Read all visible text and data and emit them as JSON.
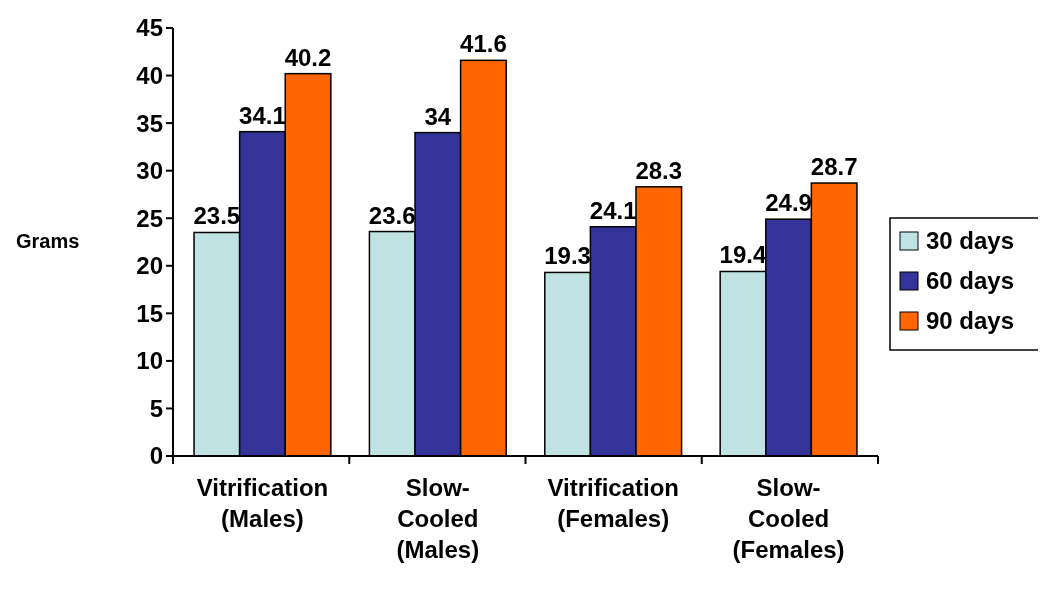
{
  "chart_data": {
    "type": "bar",
    "ylabel": "Grams",
    "categories": [
      "Vitrification (Males)",
      "Slow-Cooled (Males)",
      "Vitrification (Females)",
      "Slow-Cooled (Females)"
    ],
    "series": [
      {
        "name": "30 days",
        "color": "#bfe3e3",
        "values": [
          23.5,
          23.6,
          19.3,
          19.4
        ]
      },
      {
        "name": "60 days",
        "color": "#333399",
        "values": [
          34.1,
          34,
          24.1,
          24.9
        ]
      },
      {
        "name": "90 days",
        "color": "#ff6600",
        "values": [
          40.2,
          41.6,
          28.3,
          28.7
        ]
      }
    ],
    "ylim": [
      0,
      45
    ],
    "yticks": [
      0,
      5,
      10,
      15,
      20,
      25,
      30,
      35,
      40,
      45
    ],
    "data_labels": true,
    "legend": "right",
    "grid": false
  }
}
